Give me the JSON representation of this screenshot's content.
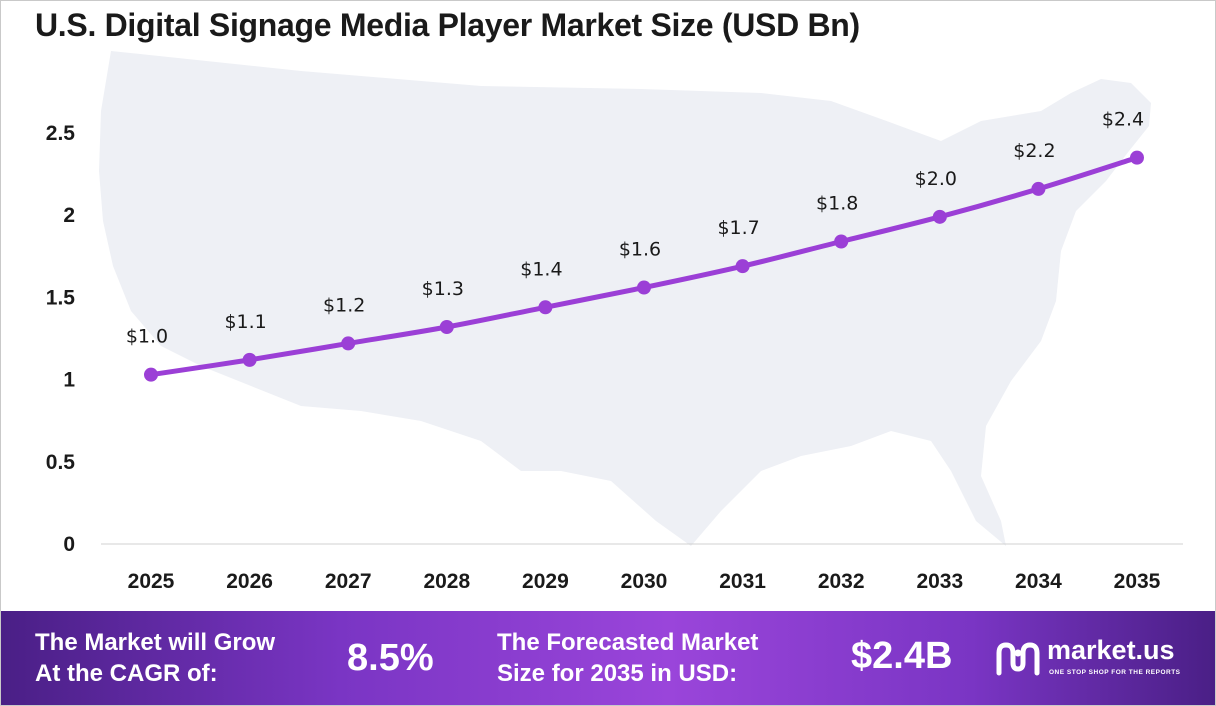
{
  "title": "U.S. Digital Signage Media Player Market Size (USD Bn)",
  "chart_data": {
    "type": "line",
    "title": "U.S. Digital Signage Media Player Market Size (USD Bn)",
    "xlabel": "",
    "ylabel": "",
    "categories": [
      "2025",
      "2026",
      "2027",
      "2028",
      "2029",
      "2030",
      "2031",
      "2032",
      "2033",
      "2034",
      "2035"
    ],
    "series": [
      {
        "name": "",
        "values": [
          1.03,
          1.12,
          1.22,
          1.32,
          1.44,
          1.56,
          1.69,
          1.84,
          1.99,
          2.16,
          2.35
        ]
      }
    ],
    "data_labels": [
      "$1.0",
      "$1.1",
      "$1.2",
      "$1.3",
      "$1.4",
      "$1.6",
      "$1.7",
      "$1.8",
      "$2.0",
      "$2.2",
      "$2.4"
    ],
    "yticks": [
      "0",
      "0.5",
      "1",
      "1.5",
      "2",
      "2.5"
    ],
    "ylim": [
      0,
      2.5
    ],
    "grid": false,
    "legend": "none",
    "line_color": "#9b3fd6",
    "background": "U.S. map silhouette"
  },
  "footer": {
    "cagr_label": "The Market will Grow\nAt the CAGR of:",
    "cagr_value": "8.5%",
    "forecast_label": "The Forecasted Market\nSize for 2035 in USD:",
    "forecast_value": "$2.4B",
    "logo_icon": "market-us-logo-icon",
    "logo_text": "market.us",
    "logo_tagline": "ONE STOP SHOP FOR THE REPORTS"
  }
}
